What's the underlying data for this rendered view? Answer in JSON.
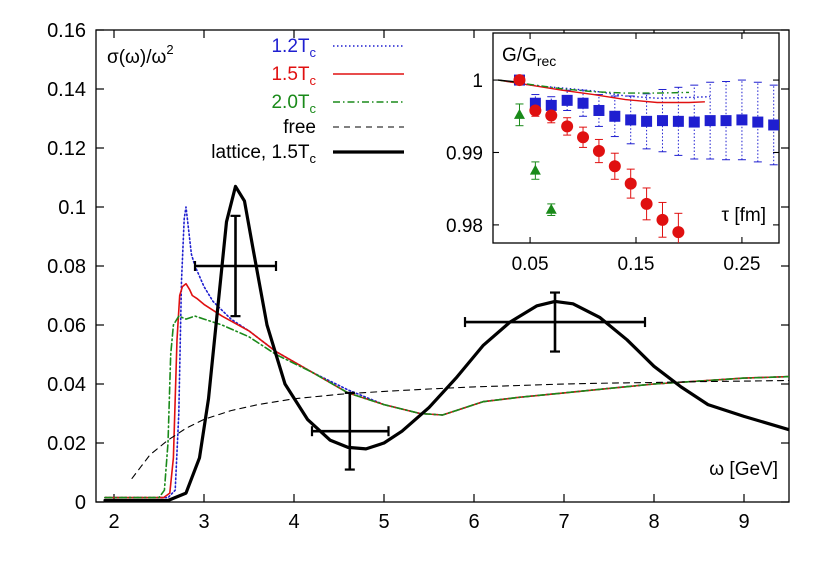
{
  "chart_data": [
    {
      "type": "line",
      "ylabel": "σ(ω)/ω",
      "ylabel_sup": "2",
      "xlabel": "ω [GeV]",
      "xlim": [
        1.8,
        9.5
      ],
      "ylim": [
        0,
        0.16
      ],
      "x_ticks": [
        "2",
        "3",
        "4",
        "5",
        "6",
        "7",
        "8",
        "9"
      ],
      "y_ticks": [
        "0",
        "0.02",
        "0.04",
        "0.06",
        "0.08",
        "0.1",
        "0.12",
        "0.14",
        "0.16"
      ],
      "legend_position": "top-left",
      "grid": false,
      "series": [
        {
          "name": "1.2T",
          "name_sub": "c",
          "color": "#1f1fd0",
          "dash": "dotted",
          "points": [
            [
              1.9,
              0.0015
            ],
            [
              2.6,
              0.0015
            ],
            [
              2.68,
              0.004
            ],
            [
              2.72,
              0.03
            ],
            [
              2.75,
              0.075
            ],
            [
              2.78,
              0.096
            ],
            [
              2.8,
              0.1
            ],
            [
              2.83,
              0.092
            ],
            [
              2.86,
              0.084
            ],
            [
              2.9,
              0.08
            ],
            [
              3.0,
              0.073
            ],
            [
              3.1,
              0.068
            ],
            [
              3.3,
              0.062
            ],
            [
              3.5,
              0.058
            ],
            [
              3.8,
              0.051
            ],
            [
              4.2,
              0.044
            ],
            [
              4.6,
              0.038
            ],
            [
              5.0,
              0.033
            ],
            [
              5.4,
              0.03
            ],
            [
              5.65,
              0.0295
            ],
            [
              5.8,
              0.031
            ],
            [
              6.1,
              0.034
            ],
            [
              6.5,
              0.0355
            ],
            [
              7.0,
              0.037
            ],
            [
              7.5,
              0.0385
            ],
            [
              8.0,
              0.04
            ],
            [
              8.5,
              0.041
            ],
            [
              9.0,
              0.042
            ],
            [
              9.5,
              0.0425
            ]
          ]
        },
        {
          "name": "1.5T",
          "name_sub": "c",
          "color": "#e01010",
          "dash": "solid",
          "points": [
            [
              1.9,
              0.0015
            ],
            [
              2.55,
              0.0015
            ],
            [
              2.62,
              0.003
            ],
            [
              2.66,
              0.015
            ],
            [
              2.7,
              0.055
            ],
            [
              2.73,
              0.07
            ],
            [
              2.76,
              0.073
            ],
            [
              2.8,
              0.074
            ],
            [
              2.84,
              0.072
            ],
            [
              2.87,
              0.07
            ],
            [
              2.92,
              0.069
            ],
            [
              3.0,
              0.067
            ],
            [
              3.2,
              0.063
            ],
            [
              3.5,
              0.058
            ],
            [
              3.8,
              0.051
            ],
            [
              4.2,
              0.044
            ],
            [
              4.6,
              0.037
            ],
            [
              5.0,
              0.033
            ],
            [
              5.4,
              0.03
            ],
            [
              5.65,
              0.0295
            ],
            [
              5.8,
              0.031
            ],
            [
              6.1,
              0.034
            ],
            [
              6.5,
              0.0355
            ],
            [
              7.0,
              0.037
            ],
            [
              7.5,
              0.0385
            ],
            [
              8.0,
              0.04
            ],
            [
              8.5,
              0.041
            ],
            [
              9.0,
              0.042
            ],
            [
              9.5,
              0.0425
            ]
          ]
        },
        {
          "name": "2.0T",
          "name_sub": "c",
          "color": "#1a8a1a",
          "dash": "dashdot",
          "points": [
            [
              1.9,
              0.0015
            ],
            [
              2.5,
              0.0015
            ],
            [
              2.56,
              0.004
            ],
            [
              2.6,
              0.02
            ],
            [
              2.63,
              0.05
            ],
            [
              2.66,
              0.06
            ],
            [
              2.72,
              0.063
            ],
            [
              2.8,
              0.062
            ],
            [
              2.9,
              0.063
            ],
            [
              3.0,
              0.062
            ],
            [
              3.2,
              0.06
            ],
            [
              3.5,
              0.056
            ],
            [
              3.8,
              0.05
            ],
            [
              4.2,
              0.044
            ],
            [
              4.6,
              0.037
            ],
            [
              5.0,
              0.033
            ],
            [
              5.4,
              0.03
            ],
            [
              5.65,
              0.0295
            ],
            [
              5.8,
              0.031
            ],
            [
              6.1,
              0.034
            ],
            [
              6.5,
              0.0355
            ],
            [
              7.0,
              0.037
            ],
            [
              7.5,
              0.0385
            ],
            [
              8.0,
              0.04
            ],
            [
              8.5,
              0.041
            ],
            [
              9.0,
              0.042
            ],
            [
              9.5,
              0.0425
            ]
          ]
        },
        {
          "name": "free",
          "name_sub": "",
          "color": "#000000",
          "dash": "dashed",
          "points": [
            [
              2.2,
              0.008
            ],
            [
              2.3,
              0.012
            ],
            [
              2.4,
              0.016
            ],
            [
              2.6,
              0.021
            ],
            [
              2.8,
              0.025
            ],
            [
              3.0,
              0.028
            ],
            [
              3.3,
              0.031
            ],
            [
              3.6,
              0.033
            ],
            [
              4.0,
              0.035
            ],
            [
              4.5,
              0.0365
            ],
            [
              5.0,
              0.0375
            ],
            [
              5.5,
              0.0383
            ],
            [
              6.0,
              0.039
            ],
            [
              6.5,
              0.0395
            ],
            [
              7.0,
              0.04
            ],
            [
              7.5,
              0.0403
            ],
            [
              8.0,
              0.0405
            ],
            [
              8.5,
              0.0408
            ],
            [
              9.0,
              0.041
            ],
            [
              9.5,
              0.0412
            ]
          ]
        },
        {
          "name": "lattice, 1.5T",
          "name_sub": "c",
          "color": "#000000",
          "dash": "solid-thick",
          "points": [
            [
              1.9,
              0.0005
            ],
            [
              2.6,
              0.0005
            ],
            [
              2.8,
              0.003
            ],
            [
              2.95,
              0.015
            ],
            [
              3.05,
              0.035
            ],
            [
              3.15,
              0.065
            ],
            [
              3.25,
              0.095
            ],
            [
              3.35,
              0.107
            ],
            [
              3.45,
              0.102
            ],
            [
              3.55,
              0.085
            ],
            [
              3.7,
              0.06
            ],
            [
              3.9,
              0.04
            ],
            [
              4.15,
              0.028
            ],
            [
              4.4,
              0.021
            ],
            [
              4.6,
              0.0185
            ],
            [
              4.8,
              0.018
            ],
            [
              5.0,
              0.02
            ],
            [
              5.2,
              0.024
            ],
            [
              5.5,
              0.032
            ],
            [
              5.8,
              0.042
            ],
            [
              6.1,
              0.053
            ],
            [
              6.4,
              0.061
            ],
            [
              6.7,
              0.0665
            ],
            [
              6.9,
              0.068
            ],
            [
              7.1,
              0.0672
            ],
            [
              7.4,
              0.0625
            ],
            [
              7.7,
              0.055
            ],
            [
              8.0,
              0.046
            ],
            [
              8.3,
              0.039
            ],
            [
              8.6,
              0.033
            ],
            [
              9.0,
              0.029
            ],
            [
              9.5,
              0.0245
            ]
          ]
        }
      ],
      "error_crosses": [
        {
          "x": 3.35,
          "y": 0.08,
          "x_lo": 2.9,
          "x_hi": 3.8,
          "y_lo": 0.063,
          "y_hi": 0.097
        },
        {
          "x": 4.62,
          "y": 0.024,
          "x_lo": 4.2,
          "x_hi": 5.05,
          "y_lo": 0.011,
          "y_hi": 0.037
        },
        {
          "x": 6.9,
          "y": 0.061,
          "x_lo": 5.9,
          "x_hi": 7.9,
          "y_lo": 0.051,
          "y_hi": 0.071
        }
      ]
    },
    {
      "type": "scatter",
      "ylabel": "G/G",
      "ylabel_sub": "rec",
      "xlabel": "τ [fm]",
      "xlim": [
        0.015,
        0.285
      ],
      "ylim": [
        0.9775,
        1.0065
      ],
      "x_ticks": [
        "0.05",
        "0.15",
        "0.25"
      ],
      "y_ticks": [
        "0.98",
        "0.99",
        "1"
      ],
      "lines": [
        {
          "color": "#1f1fd0",
          "dash": "dotted",
          "points": [
            [
              0.02,
              1.0
            ],
            [
              0.05,
              0.9993
            ],
            [
              0.08,
              0.9989
            ],
            [
              0.11,
              0.9985
            ],
            [
              0.14,
              0.9978
            ],
            [
              0.17,
              0.9975
            ],
            [
              0.2,
              0.9976
            ],
            [
              0.22,
              0.9977
            ]
          ]
        },
        {
          "color": "#e01010",
          "dash": "solid",
          "points": [
            [
              0.02,
              1.0
            ],
            [
              0.05,
              0.9993
            ],
            [
              0.08,
              0.9986
            ],
            [
              0.11,
              0.998
            ],
            [
              0.14,
              0.9973
            ],
            [
              0.17,
              0.9969
            ],
            [
              0.2,
              0.9969
            ],
            [
              0.215,
              0.997
            ]
          ]
        },
        {
          "color": "#1a8a1a",
          "dash": "dashdot",
          "points": [
            [
              0.02,
              1.0
            ],
            [
              0.05,
              0.9994
            ],
            [
              0.08,
              0.9988
            ],
            [
              0.11,
              0.9984
            ],
            [
              0.14,
              0.9982
            ],
            [
              0.17,
              0.9982
            ],
            [
              0.2,
              0.9983
            ]
          ]
        },
        {
          "color": "#000000",
          "dash": "solid",
          "points": [
            [
              0.02,
              1.0
            ],
            [
              0.04,
              0.9997
            ]
          ]
        }
      ],
      "series": [
        {
          "marker": "square",
          "color": "#1f1fd0",
          "x": [
            0.04,
            0.055,
            0.07,
            0.085,
            0.1,
            0.115,
            0.13,
            0.145,
            0.16,
            0.175,
            0.19,
            0.205,
            0.22,
            0.235,
            0.25,
            0.265,
            0.28
          ],
          "y": [
            1.0,
            0.9968,
            0.9965,
            0.9972,
            0.9968,
            0.9958,
            0.995,
            0.9945,
            0.9943,
            0.9944,
            0.9943,
            0.9942,
            0.9944,
            0.9944,
            0.9945,
            0.9942,
            0.9938
          ],
          "err": [
            0.0003,
            0.0012,
            0.0012,
            0.0014,
            0.0018,
            0.0022,
            0.0028,
            0.0033,
            0.0038,
            0.0043,
            0.0047,
            0.0051,
            0.0053,
            0.0054,
            0.0055,
            0.0055,
            0.0055
          ]
        },
        {
          "marker": "circle",
          "color": "#e01010",
          "x": [
            0.04,
            0.055,
            0.07,
            0.085,
            0.1,
            0.115,
            0.13,
            0.145,
            0.16,
            0.175,
            0.19
          ],
          "y": [
            1.0,
            0.9958,
            0.9951,
            0.9936,
            0.9921,
            0.9902,
            0.9881,
            0.9857,
            0.9829,
            0.9807,
            0.979
          ],
          "err": [
            0.0003,
            0.0008,
            0.001,
            0.0012,
            0.0014,
            0.0016,
            0.0018,
            0.002,
            0.0022,
            0.0024,
            0.0026
          ]
        },
        {
          "marker": "triangle",
          "color": "#1a8a1a",
          "x": [
            0.04,
            0.055,
            0.07
          ],
          "y": [
            0.9952,
            0.9875,
            0.9821
          ],
          "err": [
            0.0015,
            0.0012,
            0.0008
          ]
        }
      ]
    }
  ]
}
